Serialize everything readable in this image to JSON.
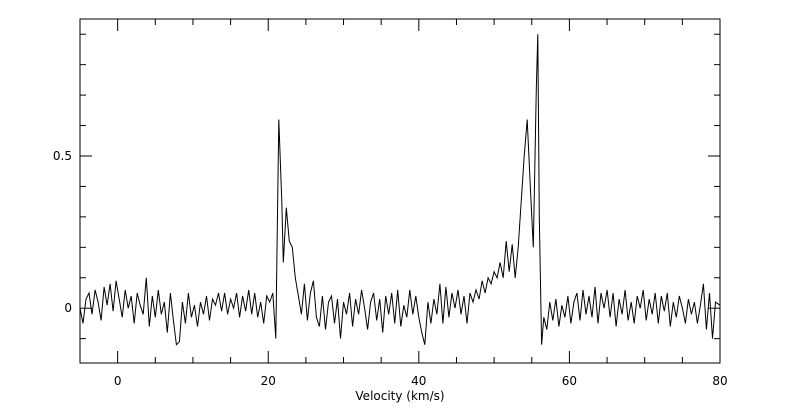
{
  "chart_data": {
    "type": "line",
    "title": "",
    "xlabel": "Velocity (km/s)",
    "ylabel": "",
    "xlim": [
      -5,
      80
    ],
    "ylim": [
      -0.18,
      0.95
    ],
    "xticks": [
      0,
      20,
      40,
      60,
      80
    ],
    "yticks": [
      0,
      0.5
    ],
    "xtick_labels": [
      "0",
      "20",
      "40",
      "60",
      "80"
    ],
    "ytick_labels": [
      "0",
      "0.5"
    ],
    "grid": false,
    "legend": "none",
    "line_color": "#000000",
    "series": [
      {
        "points": [
          [
            -5.0,
            0.0
          ],
          [
            -4.6,
            -0.05
          ],
          [
            -4.2,
            0.03
          ],
          [
            -3.8,
            0.05
          ],
          [
            -3.4,
            -0.02
          ],
          [
            -3.0,
            0.06
          ],
          [
            -2.6,
            0.02
          ],
          [
            -2.2,
            -0.04
          ],
          [
            -1.8,
            0.07
          ],
          [
            -1.4,
            0.01
          ],
          [
            -1.0,
            0.08
          ],
          [
            -0.6,
            -0.01
          ],
          [
            -0.2,
            0.09
          ],
          [
            0.2,
            0.03
          ],
          [
            0.6,
            -0.03
          ],
          [
            1.0,
            0.06
          ],
          [
            1.4,
            0.0
          ],
          [
            1.8,
            0.04
          ],
          [
            2.2,
            -0.05
          ],
          [
            2.6,
            0.05
          ],
          [
            3.0,
            0.01
          ],
          [
            3.4,
            -0.02
          ],
          [
            3.8,
            0.1
          ],
          [
            4.2,
            -0.06
          ],
          [
            4.6,
            0.04
          ],
          [
            5.0,
            -0.03
          ],
          [
            5.4,
            0.06
          ],
          [
            5.8,
            -0.02
          ],
          [
            6.2,
            0.02
          ],
          [
            6.6,
            -0.08
          ],
          [
            7.0,
            0.05
          ],
          [
            7.4,
            -0.04
          ],
          [
            7.8,
            -0.12
          ],
          [
            8.2,
            -0.11
          ],
          [
            8.6,
            0.02
          ],
          [
            9.0,
            -0.05
          ],
          [
            9.4,
            0.05
          ],
          [
            9.8,
            -0.03
          ],
          [
            10.2,
            0.01
          ],
          [
            10.6,
            -0.06
          ],
          [
            11.0,
            0.02
          ],
          [
            11.4,
            -0.02
          ],
          [
            11.8,
            0.04
          ],
          [
            12.2,
            -0.04
          ],
          [
            12.6,
            0.03
          ],
          [
            13.0,
            0.01
          ],
          [
            13.4,
            0.05
          ],
          [
            13.8,
            -0.01
          ],
          [
            14.2,
            0.05
          ],
          [
            14.6,
            -0.02
          ],
          [
            15.0,
            0.03
          ],
          [
            15.4,
            0.0
          ],
          [
            15.8,
            0.05
          ],
          [
            16.2,
            -0.03
          ],
          [
            16.6,
            0.04
          ],
          [
            17.0,
            -0.01
          ],
          [
            17.4,
            0.06
          ],
          [
            17.8,
            -0.02
          ],
          [
            18.2,
            0.05
          ],
          [
            18.6,
            -0.03
          ],
          [
            19.0,
            0.02
          ],
          [
            19.4,
            -0.05
          ],
          [
            19.8,
            0.04
          ],
          [
            20.2,
            0.02
          ],
          [
            20.6,
            0.05
          ],
          [
            21.0,
            -0.1
          ],
          [
            21.4,
            0.62
          ],
          [
            21.8,
            0.35
          ],
          [
            22.0,
            0.15
          ],
          [
            22.4,
            0.33
          ],
          [
            22.8,
            0.22
          ],
          [
            23.2,
            0.2
          ],
          [
            23.6,
            0.1
          ],
          [
            24.0,
            0.04
          ],
          [
            24.4,
            -0.02
          ],
          [
            24.8,
            0.08
          ],
          [
            25.2,
            -0.04
          ],
          [
            25.6,
            0.05
          ],
          [
            26.0,
            0.09
          ],
          [
            26.4,
            -0.03
          ],
          [
            26.8,
            -0.06
          ],
          [
            27.2,
            0.04
          ],
          [
            27.6,
            -0.07
          ],
          [
            28.0,
            0.02
          ],
          [
            28.4,
            0.04
          ],
          [
            28.8,
            -0.05
          ],
          [
            29.2,
            0.03
          ],
          [
            29.6,
            -0.1
          ],
          [
            30.0,
            0.02
          ],
          [
            30.4,
            -0.02
          ],
          [
            30.8,
            0.05
          ],
          [
            31.2,
            -0.06
          ],
          [
            31.6,
            0.03
          ],
          [
            32.0,
            -0.02
          ],
          [
            32.4,
            0.06
          ],
          [
            32.8,
            0.0
          ],
          [
            33.2,
            -0.07
          ],
          [
            33.6,
            0.02
          ],
          [
            34.0,
            0.05
          ],
          [
            34.4,
            -0.04
          ],
          [
            34.8,
            0.03
          ],
          [
            35.2,
            -0.08
          ],
          [
            35.6,
            0.04
          ],
          [
            36.0,
            -0.02
          ],
          [
            36.4,
            0.05
          ],
          [
            36.8,
            -0.05
          ],
          [
            37.2,
            0.06
          ],
          [
            37.6,
            -0.06
          ],
          [
            38.0,
            0.01
          ],
          [
            38.4,
            -0.03
          ],
          [
            38.8,
            0.06
          ],
          [
            39.2,
            -0.02
          ],
          [
            39.6,
            0.04
          ],
          [
            40.0,
            -0.03
          ],
          [
            40.4,
            -0.08
          ],
          [
            40.8,
            -0.12
          ],
          [
            41.2,
            0.02
          ],
          [
            41.6,
            -0.05
          ],
          [
            42.0,
            0.03
          ],
          [
            42.4,
            -0.02
          ],
          [
            42.8,
            0.08
          ],
          [
            43.2,
            -0.05
          ],
          [
            43.6,
            0.07
          ],
          [
            44.0,
            -0.03
          ],
          [
            44.4,
            0.05
          ],
          [
            44.8,
            0.0
          ],
          [
            45.2,
            0.06
          ],
          [
            45.6,
            -0.02
          ],
          [
            46.0,
            0.04
          ],
          [
            46.4,
            -0.05
          ],
          [
            46.8,
            0.05
          ],
          [
            47.2,
            0.02
          ],
          [
            47.6,
            0.06
          ],
          [
            48.0,
            0.03
          ],
          [
            48.4,
            0.09
          ],
          [
            48.8,
            0.05
          ],
          [
            49.2,
            0.1
          ],
          [
            49.6,
            0.08
          ],
          [
            50.0,
            0.12
          ],
          [
            50.4,
            0.1
          ],
          [
            50.8,
            0.15
          ],
          [
            51.2,
            0.1
          ],
          [
            51.6,
            0.22
          ],
          [
            52.0,
            0.12
          ],
          [
            52.4,
            0.21
          ],
          [
            52.8,
            0.1
          ],
          [
            53.2,
            0.2
          ],
          [
            53.6,
            0.35
          ],
          [
            54.0,
            0.5
          ],
          [
            54.4,
            0.62
          ],
          [
            54.8,
            0.4
          ],
          [
            55.2,
            0.2
          ],
          [
            55.6,
            0.72
          ],
          [
            55.8,
            0.9
          ],
          [
            56.0,
            0.3
          ],
          [
            56.3,
            -0.12
          ],
          [
            56.6,
            -0.03
          ],
          [
            57.0,
            -0.07
          ],
          [
            57.4,
            0.02
          ],
          [
            57.8,
            -0.04
          ],
          [
            58.2,
            0.03
          ],
          [
            58.6,
            -0.06
          ],
          [
            59.0,
            0.01
          ],
          [
            59.4,
            -0.03
          ],
          [
            59.8,
            0.04
          ],
          [
            60.2,
            -0.05
          ],
          [
            60.6,
            0.02
          ],
          [
            61.0,
            0.05
          ],
          [
            61.4,
            -0.04
          ],
          [
            61.8,
            0.06
          ],
          [
            62.2,
            -0.02
          ],
          [
            62.6,
            0.04
          ],
          [
            63.0,
            -0.03
          ],
          [
            63.4,
            0.07
          ],
          [
            63.8,
            -0.05
          ],
          [
            64.2,
            0.05
          ],
          [
            64.6,
            0.0
          ],
          [
            65.0,
            0.06
          ],
          [
            65.4,
            -0.03
          ],
          [
            65.8,
            0.05
          ],
          [
            66.2,
            -0.06
          ],
          [
            66.6,
            0.03
          ],
          [
            67.0,
            -0.02
          ],
          [
            67.4,
            0.06
          ],
          [
            67.8,
            -0.04
          ],
          [
            68.2,
            0.02
          ],
          [
            68.6,
            -0.05
          ],
          [
            69.0,
            0.04
          ],
          [
            69.4,
            0.0
          ],
          [
            69.8,
            0.06
          ],
          [
            70.2,
            -0.04
          ],
          [
            70.6,
            0.03
          ],
          [
            71.0,
            -0.02
          ],
          [
            71.4,
            0.05
          ],
          [
            71.8,
            -0.05
          ],
          [
            72.2,
            0.04
          ],
          [
            72.6,
            -0.01
          ],
          [
            73.0,
            0.05
          ],
          [
            73.4,
            -0.06
          ],
          [
            73.8,
            0.02
          ],
          [
            74.2,
            -0.03
          ],
          [
            74.6,
            0.04
          ],
          [
            75.0,
            0.0
          ],
          [
            75.4,
            -0.05
          ],
          [
            75.8,
            0.03
          ],
          [
            76.2,
            -0.02
          ],
          [
            76.6,
            0.02
          ],
          [
            77.0,
            -0.05
          ],
          [
            77.4,
            0.01
          ],
          [
            77.8,
            0.08
          ],
          [
            78.2,
            -0.07
          ],
          [
            78.6,
            0.05
          ],
          [
            79.0,
            -0.1
          ],
          [
            79.4,
            0.02
          ],
          [
            80.0,
            0.01
          ]
        ]
      }
    ]
  }
}
